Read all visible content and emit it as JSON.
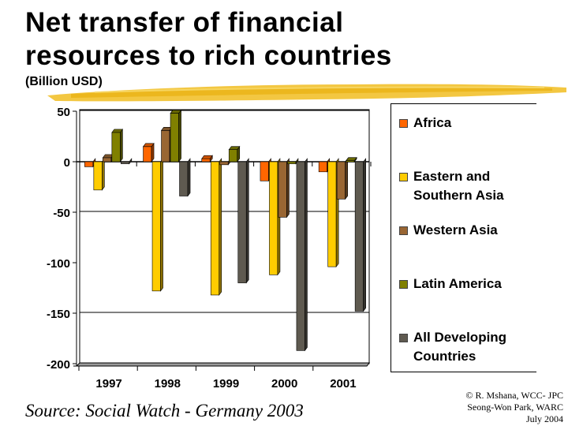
{
  "slide": {
    "title_line1": "Net transfer of financial",
    "title_line2": "resources to rich countries",
    "subtitle": "(Billion USD)",
    "source": "Source: Social Watch - Germany 2003",
    "credit": [
      "© R. Mshana, WCC- JPC",
      "Seong-Won Park, WARC",
      "July 2004"
    ]
  },
  "legend": [
    {
      "label": "Africa",
      "color": "#FF6600"
    },
    {
      "label": "Eastern and\nSouthern Asia",
      "color": "#FFCC00"
    },
    {
      "label": "Western Asia",
      "color": "#996633"
    },
    {
      "label": "Latin America",
      "color": "#808000"
    },
    {
      "label": "All Developing\nCountries",
      "color": "#5F5A50"
    }
  ],
  "chart_data": {
    "type": "bar",
    "title": "Net transfer of financial resources to rich countries",
    "subtitle": "(Billion USD)",
    "xlabel": "",
    "ylabel": "Billion USD",
    "categories": [
      "1997",
      "1998",
      "1999",
      "2000",
      "2001"
    ],
    "series": [
      {
        "name": "Africa",
        "color": "#FF6600",
        "values": [
          -5,
          15,
          3,
          -19,
          -10
        ]
      },
      {
        "name": "Eastern and Southern Asia",
        "color": "#FFCC00",
        "values": [
          -28,
          -128,
          -132,
          -112,
          -104
        ]
      },
      {
        "name": "Western Asia",
        "color": "#996633",
        "values": [
          4,
          31,
          -3,
          -55,
          -37
        ]
      },
      {
        "name": "Latin America",
        "color": "#808000",
        "values": [
          29,
          48,
          12,
          -2,
          1
        ]
      },
      {
        "name": "All Developing Countries",
        "color": "#5F5A50",
        "values": [
          -2,
          -34,
          -120,
          -187,
          -148
        ]
      }
    ],
    "ylim": [
      -200,
      50
    ],
    "yticks": [
      50,
      0,
      -50,
      -100,
      -150,
      -200
    ],
    "gridlines": [
      50,
      -50,
      -150
    ],
    "legend_position": "right",
    "style": "3d-clustered-column",
    "source": "Source: Social Watch - Germany 2003"
  }
}
